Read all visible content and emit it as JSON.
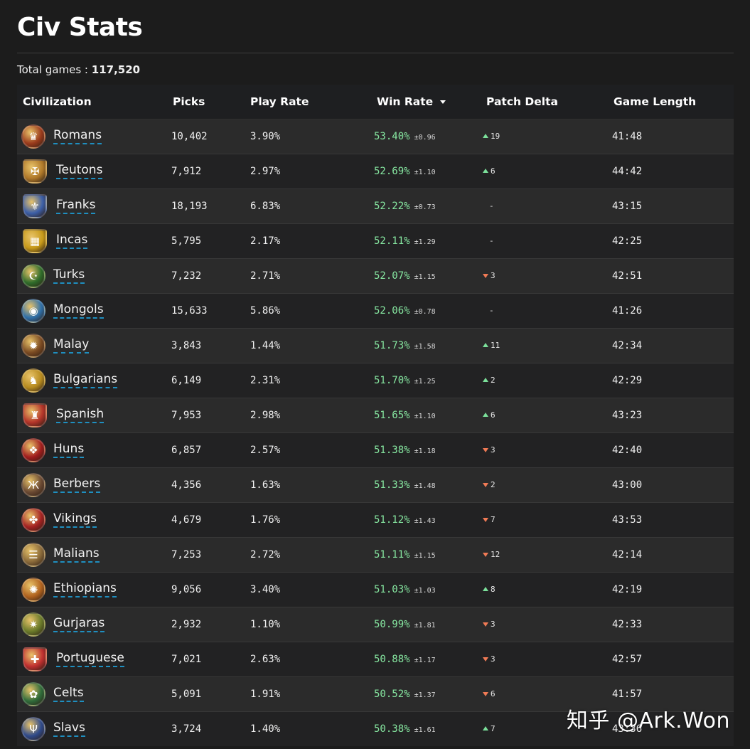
{
  "page": {
    "title": "Civ Stats",
    "total_label": "Total games :",
    "total_value": "117,520"
  },
  "table": {
    "headers": {
      "civilization": "Civilization",
      "picks": "Picks",
      "play_rate": "Play Rate",
      "win_rate": "Win Rate",
      "patch_delta": "Patch Delta",
      "game_length": "Game Length"
    },
    "sorted_by": "Win Rate",
    "sort_direction": "descending",
    "rows": [
      {
        "name": "Romans",
        "picks": "10,402",
        "play_rate": "3.90%",
        "win_rate": "53.40%",
        "ci": "±0.96",
        "delta_dir": "up",
        "delta": "19",
        "length": "41:48",
        "icon": "roman-eagle-icon",
        "color": "#9a3b1c"
      },
      {
        "name": "Teutons",
        "picks": "7,912",
        "play_rate": "2.97%",
        "win_rate": "52.69%",
        "ci": "±1.10",
        "delta_dir": "up",
        "delta": "6",
        "length": "44:42",
        "icon": "teuton-eagle-shield-icon",
        "color": "#b0792a"
      },
      {
        "name": "Franks",
        "picks": "18,193",
        "play_rate": "6.83%",
        "win_rate": "52.22%",
        "ci": "±0.73",
        "delta_dir": "none",
        "delta": "-",
        "length": "43:15",
        "icon": "fleur-de-lis-shield-icon",
        "color": "#3c5fa8"
      },
      {
        "name": "Incas",
        "picks": "5,795",
        "play_rate": "2.17%",
        "win_rate": "52.11%",
        "ci": "±1.29",
        "delta_dir": "none",
        "delta": "-",
        "length": "42:25",
        "icon": "inca-banner-icon",
        "color": "#c79a1a"
      },
      {
        "name": "Turks",
        "picks": "7,232",
        "play_rate": "2.71%",
        "win_rate": "52.07%",
        "ci": "±1.15",
        "delta_dir": "down",
        "delta": "3",
        "length": "42:51",
        "icon": "crescent-icon",
        "color": "#2e6b2a"
      },
      {
        "name": "Mongols",
        "picks": "15,633",
        "play_rate": "5.86%",
        "win_rate": "52.06%",
        "ci": "±0.78",
        "delta_dir": "none",
        "delta": "-",
        "length": "41:26",
        "icon": "mongol-emblem-icon",
        "color": "#2f6fa8"
      },
      {
        "name": "Malay",
        "picks": "3,843",
        "play_rate": "1.44%",
        "win_rate": "51.73%",
        "ci": "±1.58",
        "delta_dir": "up",
        "delta": "11",
        "length": "42:34",
        "icon": "malay-shield-icon",
        "color": "#7a4a22"
      },
      {
        "name": "Bulgarians",
        "picks": "6,149",
        "play_rate": "2.31%",
        "win_rate": "51.70%",
        "ci": "±1.25",
        "delta_dir": "up",
        "delta": "2",
        "length": "42:29",
        "icon": "bulgarian-lion-icon",
        "color": "#b68a1e"
      },
      {
        "name": "Spanish",
        "picks": "7,953",
        "play_rate": "2.98%",
        "win_rate": "51.65%",
        "ci": "±1.10",
        "delta_dir": "up",
        "delta": "6",
        "length": "43:23",
        "icon": "spanish-arms-icon",
        "color": "#b5352a"
      },
      {
        "name": "Huns",
        "picks": "6,857",
        "play_rate": "2.57%",
        "win_rate": "51.38%",
        "ci": "±1.18",
        "delta_dir": "down",
        "delta": "3",
        "length": "42:40",
        "icon": "hun-wolf-icon",
        "color": "#a11d1d"
      },
      {
        "name": "Berbers",
        "picks": "4,356",
        "play_rate": "1.63%",
        "win_rate": "51.33%",
        "ci": "±1.48",
        "delta_dir": "down",
        "delta": "2",
        "length": "43:00",
        "icon": "berber-symbol-icon",
        "color": "#6b4a33"
      },
      {
        "name": "Vikings",
        "picks": "4,679",
        "play_rate": "1.76%",
        "win_rate": "51.12%",
        "ci": "±1.43",
        "delta_dir": "down",
        "delta": "7",
        "length": "43:53",
        "icon": "viking-knot-icon",
        "color": "#a52222"
      },
      {
        "name": "Malians",
        "picks": "7,253",
        "play_rate": "2.72%",
        "win_rate": "51.11%",
        "ci": "±1.15",
        "delta_dir": "down",
        "delta": "12",
        "length": "42:14",
        "icon": "malian-mask-icon",
        "color": "#8a6a3a"
      },
      {
        "name": "Ethiopians",
        "picks": "9,056",
        "play_rate": "3.40%",
        "win_rate": "51.03%",
        "ci": "±1.03",
        "delta_dir": "up",
        "delta": "8",
        "length": "42:19",
        "icon": "ethiopian-shield-icon",
        "color": "#b0621e"
      },
      {
        "name": "Gurjaras",
        "picks": "2,932",
        "play_rate": "1.10%",
        "win_rate": "50.99%",
        "ci": "±1.81",
        "delta_dir": "down",
        "delta": "3",
        "length": "42:33",
        "icon": "gurjara-sun-icon",
        "color": "#6a7a2a"
      },
      {
        "name": "Portuguese",
        "picks": "7,021",
        "play_rate": "2.63%",
        "win_rate": "50.88%",
        "ci": "±1.17",
        "delta_dir": "down",
        "delta": "3",
        "length": "42:57",
        "icon": "portuguese-arms-icon",
        "color": "#c03030"
      },
      {
        "name": "Celts",
        "picks": "5,091",
        "play_rate": "1.91%",
        "win_rate": "50.52%",
        "ci": "±1.37",
        "delta_dir": "down",
        "delta": "6",
        "length": "41:57",
        "icon": "celtic-triskele-icon",
        "color": "#2f6b3a"
      },
      {
        "name": "Slavs",
        "picks": "3,724",
        "play_rate": "1.40%",
        "win_rate": "50.38%",
        "ci": "±1.61",
        "delta_dir": "up",
        "delta": "7",
        "length": "43:36",
        "icon": "slavic-trident-icon",
        "color": "#2f4a8a"
      }
    ]
  },
  "watermark": "知乎 @Ark.Won",
  "colors": {
    "background": "#1c1c1c",
    "win_rate": "#86e6a0",
    "delta_up": "#7be09a",
    "delta_down": "#f07a55",
    "link_underline": "#1f8fc0"
  }
}
